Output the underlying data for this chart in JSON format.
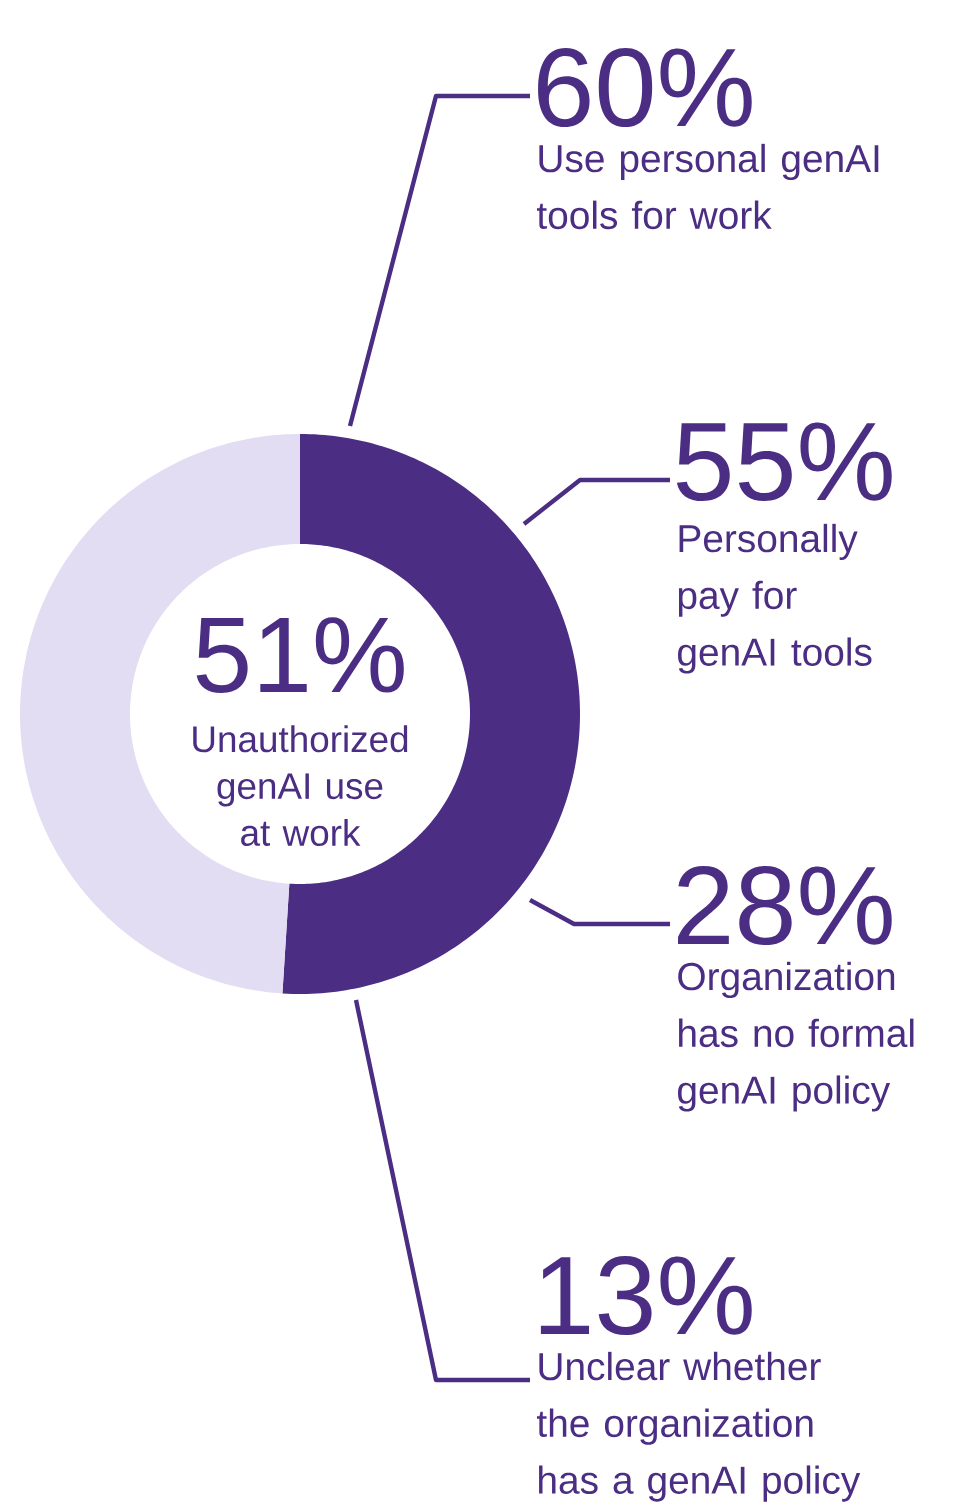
{
  "chart_data": {
    "type": "donut",
    "categories": [
      "Unauthorized genAI use at work",
      null
    ],
    "values": [
      51,
      49
    ],
    "value_labels": [
      "51%",
      null
    ],
    "colors": [
      "#4b2e84",
      "#e3ddf3"
    ],
    "annotations": [
      "60%",
      "Use personal genAI tools for work",
      "55%",
      "Personally pay for genAI tools",
      "28%",
      "Organization has no formal genAI policy",
      "13%",
      "Unclear whether the organization has a genAI policy"
    ]
  }
}
